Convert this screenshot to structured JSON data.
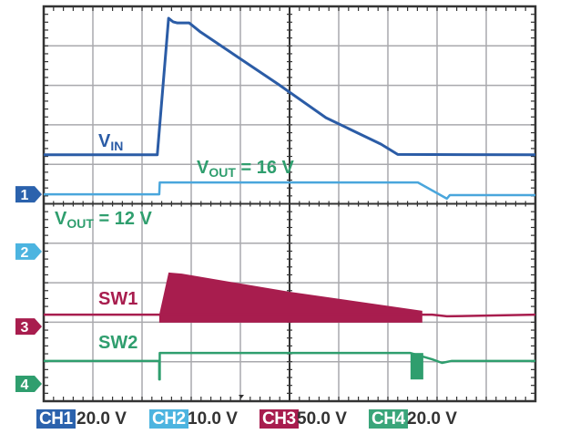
{
  "chart_data": {
    "type": "line",
    "grid": true,
    "divisions": {
      "x": 10,
      "y": 10
    },
    "xlim": [
      0,
      10
    ],
    "ylim": [
      0,
      10
    ],
    "series": [
      {
        "id": "ch1",
        "color": "#2b5ca6",
        "points": [
          [
            0,
            6.24
          ],
          [
            2.31,
            6.24
          ],
          [
            2.54,
            9.7
          ],
          [
            2.63,
            9.61
          ],
          [
            2.72,
            9.58
          ],
          [
            2.96,
            9.58
          ],
          [
            3.19,
            9.35
          ],
          [
            3.93,
            8.73
          ],
          [
            4.78,
            8.02
          ],
          [
            5.74,
            7.18
          ],
          [
            6.86,
            6.51
          ],
          [
            7.2,
            6.25
          ],
          [
            10,
            6.24
          ]
        ]
      },
      {
        "id": "ch2",
        "color": "#4aa6dc",
        "points": [
          [
            0,
            5.24
          ],
          [
            2.35,
            5.24
          ],
          [
            2.36,
            5.54
          ],
          [
            7.61,
            5.54
          ],
          [
            8.2,
            5.13
          ],
          [
            8.26,
            5.22
          ],
          [
            10,
            5.22
          ]
        ]
      },
      {
        "id": "ch3",
        "color": "#a81d4e",
        "points": [
          [
            0,
            2.19
          ],
          [
            2.35,
            2.19
          ],
          [
            7.9,
            2.19
          ],
          [
            8.2,
            2.15
          ],
          [
            10,
            2.19
          ]
        ],
        "envelope": {
          "top": [
            [
              2.35,
              2.19
            ],
            [
              2.54,
              3.26
            ],
            [
              2.81,
              3.23
            ],
            [
              5.0,
              2.77
            ],
            [
              7.7,
              2.29
            ]
          ],
          "bottom": 1.99
        }
      },
      {
        "id": "ch4",
        "color": "#2f9e6e",
        "points": [
          [
            0,
            1.02
          ],
          [
            2.35,
            1.02
          ],
          [
            2.35,
            0.55
          ],
          [
            2.36,
            0.55
          ],
          [
            2.36,
            1.22
          ],
          [
            7.46,
            1.22
          ],
          [
            7.9,
            1.06
          ],
          [
            8.1,
            0.97
          ],
          [
            8.3,
            1.02
          ],
          [
            10,
            1.02
          ]
        ],
        "burst": {
          "x": [
            7.46,
            7.72
          ],
          "low": 0.55,
          "high": 1.22
        }
      }
    ],
    "annotations": {
      "vin": {
        "main": "V",
        "sub": "IN"
      },
      "vout16": {
        "main": "V",
        "sub": "OUT",
        "rest": " = 16 V"
      },
      "vout12": {
        "main": "V",
        "sub": "OUT",
        "rest": " = 12 V"
      },
      "sw1": "SW1",
      "sw2": "SW2"
    },
    "markers": [
      {
        "label": "1",
        "color": "#2b62ad",
        "level": 5.24
      },
      {
        "label": "2",
        "color": "#4cb4e0",
        "level": 3.79
      },
      {
        "label": "3",
        "color": "#a81d4e",
        "level": 1.89
      },
      {
        "label": "4",
        "color": "#2f9e6e",
        "level": 0.44
      }
    ],
    "channels": [
      {
        "name": "CH1",
        "scale": "20.0 V",
        "color": "#2b62ad"
      },
      {
        "name": "CH2",
        "scale": "10.0 V",
        "color": "#4cb4e0"
      },
      {
        "name": "CH3",
        "scale": "50.0 V",
        "color": "#a81d4e"
      },
      {
        "name": "CH4",
        "scale": "20.0 V",
        "color": "#3aa57a"
      }
    ]
  }
}
